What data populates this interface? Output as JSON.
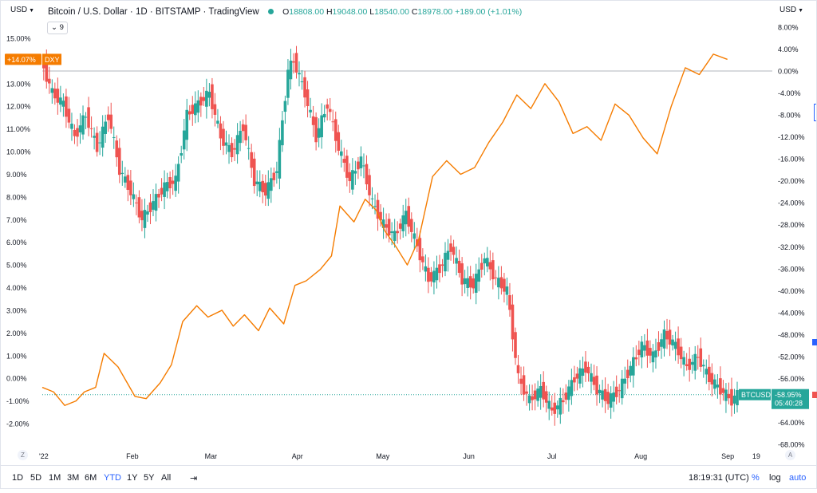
{
  "header": {
    "currency_left": "USD",
    "currency_right": "USD",
    "symbol_title": "Bitcoin / U.S. Dollar",
    "interval": "1D",
    "exchange": "BITSTAMP",
    "provider": "TradingView",
    "ohlc": {
      "open_label": "O",
      "open": "18808.00",
      "high_label": "H",
      "high": "19048.00",
      "low_label": "L",
      "low": "18540.00",
      "close_label": "C",
      "close": "18978.00",
      "change": "+189.00 (+1.01%)"
    },
    "indicator_toggle": "9"
  },
  "bottom_bar": {
    "ranges": [
      "1D",
      "5D",
      "1M",
      "3M",
      "6M",
      "YTD",
      "1Y",
      "5Y",
      "All"
    ],
    "active_range": "YTD",
    "time": "18:19:31 (UTC)",
    "percent_label": "%",
    "log_label": "log",
    "auto_label": "auto"
  },
  "axis_buttons": {
    "left": "Z",
    "right": "A"
  },
  "chart_data": {
    "type": "line",
    "title": "Bitcoin / U.S. Dollar · 1D · BITSTAMP",
    "x_tick_labels": [
      "'22",
      "Feb",
      "Mar",
      "Apr",
      "May",
      "Jun",
      "Jul",
      "Aug",
      "Sep",
      "19"
    ],
    "left_axis": {
      "ticks": [
        "15.00%",
        "14.00%",
        "13.00%",
        "12.00%",
        "11.00%",
        "10.00%",
        "9.00%",
        "8.00%",
        "7.00%",
        "6.00%",
        "5.00%",
        "4.00%",
        "3.00%",
        "2.00%",
        "1.00%",
        "0.00%",
        "-1.00%",
        "-2.00%"
      ],
      "range": [
        -2.5,
        15.5
      ]
    },
    "right_axis": {
      "ticks": [
        "8.00%",
        "4.00%",
        "0.00%",
        "-4.00%",
        "-8.00%",
        "-12.00%",
        "-16.00%",
        "-20.00%",
        "-24.00%",
        "-28.00%",
        "-32.00%",
        "-36.00%",
        "-40.00%",
        "-44.00%",
        "-48.00%",
        "-52.00%",
        "-56.00%",
        "-60.00%",
        "-64.00%",
        "-68.00%"
      ],
      "range": [
        -69,
        10
      ]
    },
    "series": [
      {
        "name": "DXY",
        "axis": "left",
        "color": "#f57c00",
        "last_label": "+14.07%",
        "x": [
          0,
          4,
          8,
          12,
          15,
          19,
          22,
          27,
          33,
          37,
          42,
          46,
          50,
          55,
          59,
          64,
          68,
          72,
          77,
          81,
          86,
          90,
          94,
          99,
          103,
          106,
          111,
          115,
          119,
          122,
          126,
          130,
          134,
          139,
          144,
          149,
          154,
          159,
          164,
          169,
          174,
          179,
          184,
          189,
          194,
          199,
          204,
          209,
          214,
          219,
          224,
          229,
          234,
          239,
          244
        ],
        "y": [
          -0.4,
          -0.6,
          -1.2,
          -1.0,
          -0.6,
          -0.4,
          1.1,
          0.5,
          -0.8,
          -0.9,
          -0.2,
          0.6,
          2.5,
          3.2,
          2.7,
          3.0,
          2.3,
          2.8,
          2.1,
          3.1,
          2.4,
          4.1,
          4.3,
          4.8,
          5.4,
          7.6,
          6.9,
          7.9,
          7.4,
          6.5,
          5.8,
          5.0,
          6.1,
          8.9,
          9.6,
          9.0,
          9.3,
          10.4,
          11.3,
          12.5,
          11.9,
          13.0,
          12.2,
          10.8,
          11.1,
          10.5,
          12.1,
          11.6,
          10.6,
          9.9,
          12.0,
          13.7,
          13.4,
          14.3,
          14.07
        ]
      },
      {
        "name": "BTCUSD",
        "axis": "right",
        "color": "#26a69a",
        "down_color": "#ef5350",
        "last_label": "-58.95%",
        "countdown": "05:40:28",
        "x": [
          0,
          4,
          8,
          12,
          16,
          20,
          24,
          28,
          32,
          36,
          40,
          44,
          48,
          52,
          56,
          60,
          64,
          68,
          72,
          76,
          80,
          84,
          88,
          90,
          94,
          98,
          102,
          106,
          110,
          114,
          118,
          122,
          126,
          130,
          134,
          138,
          142,
          146,
          150,
          154,
          158,
          162,
          166,
          170,
          174,
          178,
          182,
          186,
          190,
          194,
          198,
          202,
          206,
          210,
          214,
          218,
          222,
          226,
          230,
          234,
          238,
          242,
          246,
          248
        ],
        "y": [
          2,
          -4,
          -6,
          -12,
          -8,
          -14,
          -8,
          -18,
          -22,
          -27,
          -24,
          -21,
          -20,
          -8,
          -6,
          -4,
          -12,
          -15,
          -10,
          -20,
          -22,
          -18,
          0,
          2,
          -4,
          -12,
          -6,
          -14,
          -20,
          -16,
          -24,
          -28,
          -30,
          -26,
          -32,
          -38,
          -36,
          -32,
          -38,
          -39,
          -34,
          -38,
          -40,
          -56,
          -60,
          -58,
          -62,
          -60,
          -56,
          -54,
          -58,
          -60,
          -58,
          -54,
          -50,
          -52,
          -48,
          -50,
          -54,
          -52,
          -56,
          -58,
          -60,
          -58.95
        ]
      }
    ],
    "baseline": {
      "axis": "right",
      "value": 0
    },
    "grid": false,
    "legend_placement": "top-left"
  }
}
